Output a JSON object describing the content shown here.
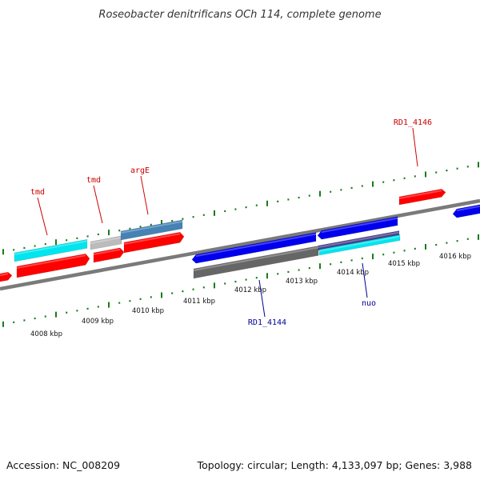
{
  "title": "Roseobacter denitrificans OCh 114, complete genome",
  "accession": "Accession: NC_008209",
  "topology": "Topology: circular; Length: 4,133,097 bp; Genes: 3,988",
  "colors": {
    "backbone": "#7a7a7a",
    "tick": "#1a7a1a",
    "forward_label": "#cc0000",
    "reverse_label": "#000099",
    "red": "#ff0000",
    "cyan": "#00e5ee",
    "blue": "#0000ee",
    "steelblue": "#4682b4",
    "lightgray": "#bbbbbb",
    "gray": "#666666",
    "slate": "#483d8b"
  },
  "kbp_labels": [
    "4008 kbp",
    "4009 kbp",
    "4010 kbp",
    "4011 kbp",
    "4012 kbp",
    "4013 kbp",
    "4014 kbp",
    "4015 kbp",
    "4016 kbp"
  ],
  "gene_labels": [
    {
      "text": "tmd",
      "strand": "forward"
    },
    {
      "text": "tmd",
      "strand": "forward"
    },
    {
      "text": "argE",
      "strand": "forward"
    },
    {
      "text": "RD1_4146",
      "strand": "forward"
    },
    {
      "text": "RD1_4144",
      "strand": "reverse"
    },
    {
      "text": "nuo",
      "strand": "reverse"
    }
  ]
}
